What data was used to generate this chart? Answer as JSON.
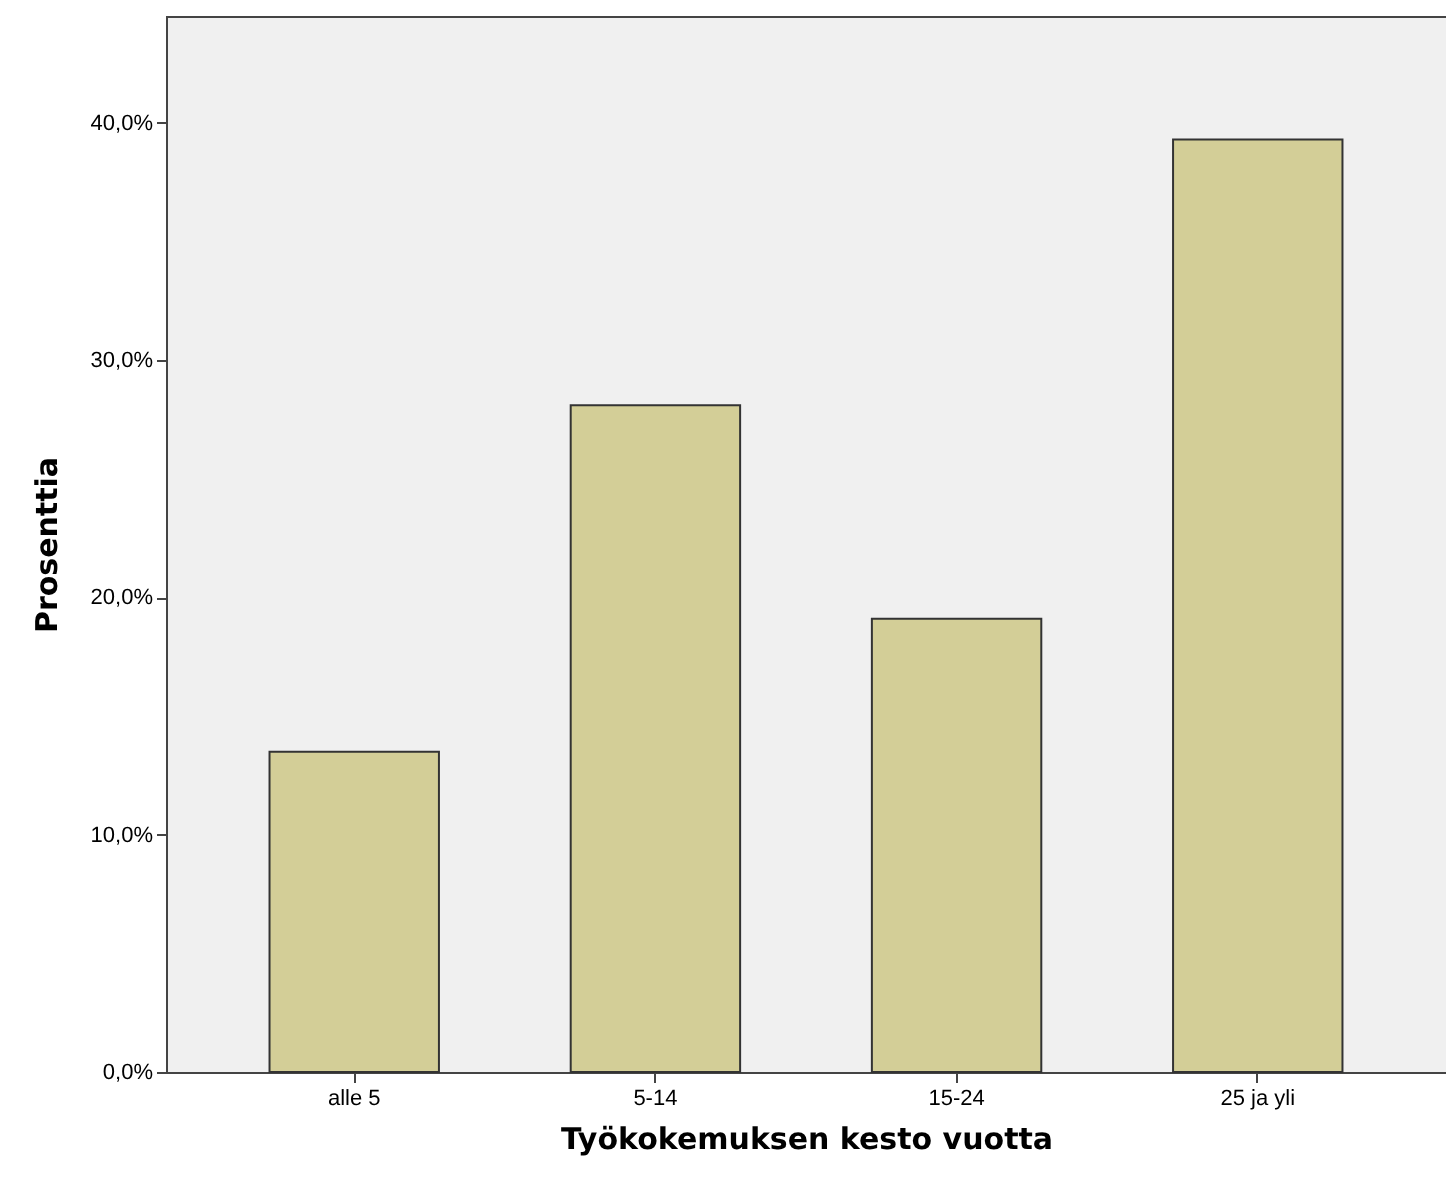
{
  "chart_data": {
    "type": "bar",
    "xlabel": "Työkokemuksen kesto vuotta",
    "ylabel": "Prosenttia",
    "categories": [
      "alle 5",
      "5-14",
      "15-24",
      "25 ja yli"
    ],
    "values": [
      13.5,
      28.1,
      19.1,
      39.3
    ],
    "color": "#d3ce97",
    "ylim": [
      0,
      44.5
    ],
    "yticks": [
      {
        "value": 0,
        "label": "0,0%"
      },
      {
        "value": 10,
        "label": "10,0%"
      },
      {
        "value": 20,
        "label": "20,0%"
      },
      {
        "value": 30,
        "label": "30,0%"
      },
      {
        "value": 40,
        "label": "40,0%"
      }
    ],
    "grid": false
  }
}
